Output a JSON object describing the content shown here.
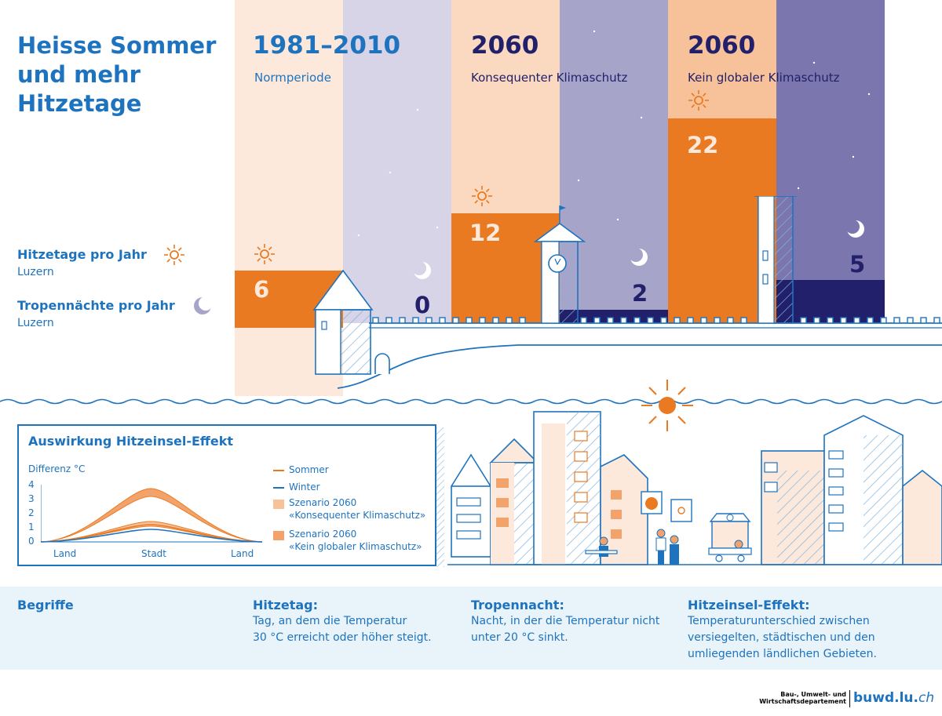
{
  "title": [
    "Heisse Sommer",
    "und mehr",
    "Hitzetage"
  ],
  "legend": {
    "hot_days_label": "Hitzetage pro Jahr",
    "hot_days_place": "Luzern",
    "tropical_nights_label": "Tropennächte pro Jahr",
    "tropical_nights_place": "Luzern"
  },
  "periods": [
    {
      "year": "1981–2010",
      "subtitle": "Normperiode",
      "hot_days": "6",
      "tropical_nights": "0",
      "hot_days_value": 6,
      "tropical_nights_value": 0
    },
    {
      "year": "2060",
      "subtitle": "Konsequenter Klimaschutz",
      "hot_days": "12",
      "tropical_nights": "2",
      "hot_days_value": 12,
      "tropical_nights_value": 2
    },
    {
      "year": "2060",
      "subtitle": "Kein globaler Klimaschutz",
      "hot_days": "22",
      "tropical_nights": "5",
      "hot_days_value": 22,
      "tropical_nights_value": 5
    }
  ],
  "colors": {
    "blue": "#1e73be",
    "orange": "#ea7a22",
    "light_orange": "#f7c29a",
    "pale_orange": "#fce9dc",
    "lavender": "#d6d4e6",
    "purple_mid": "#a7a4c9",
    "purple_dark": "#7b76ad",
    "navy": "#22206a"
  },
  "chart": {
    "title": "Auswirkung Hitzeinsel-Effekt",
    "ylabel": "Differenz °C",
    "yticks": [
      "4",
      "3",
      "2",
      "1",
      "0"
    ],
    "xticks": [
      "Land",
      "Stadt",
      "Land"
    ],
    "legend": [
      {
        "label": "Sommer"
      },
      {
        "label": "Winter"
      },
      {
        "label1": "Szenario 2060",
        "label2": "«Konsequenter Klimaschutz»"
      },
      {
        "label1": "Szenario 2060",
        "label2": "«Kein globaler Klimaschutz»"
      }
    ]
  },
  "chart_data": {
    "type": "line",
    "title": "Auswirkung Hitzeinsel-Effekt",
    "ylabel": "Differenz °C",
    "ylim": [
      0,
      4
    ],
    "categories": [
      "Land",
      "Stadt",
      "Land"
    ],
    "series": [
      {
        "name": "Sommer",
        "peak": 1.2
      },
      {
        "name": "Winter",
        "peak": 0.9
      },
      {
        "name": "Szenario 2060 «Konsequenter Klimaschutz»",
        "peak": 3.3
      },
      {
        "name": "Szenario 2060 «Kein globaler Klimaschutz»",
        "peak": 3.7
      }
    ]
  },
  "definitions": {
    "heading": "Begriffe",
    "items": [
      {
        "term": "Hitzetag:",
        "text1": "Tag, an dem die Temperatur",
        "text2": "30 °C erreicht oder höher steigt.",
        "text3": ""
      },
      {
        "term": "Tropennacht:",
        "text1": "Nacht, in der die Temperatur nicht",
        "text2": "unter 20 °C sinkt.",
        "text3": ""
      },
      {
        "term": "Hitzeinsel-Effekt:",
        "text1": "Temperaturunterschied zwischen",
        "text2": "versiegelten, städtischen und den",
        "text3": "umliegenden ländlichen Gebieten."
      }
    ]
  },
  "footer": {
    "dept1": "Bau-, Umwelt- und",
    "dept2": "Wirtschaftsdepartement",
    "logo_main": "buwd.lu.",
    "logo_suffix": "ch"
  }
}
